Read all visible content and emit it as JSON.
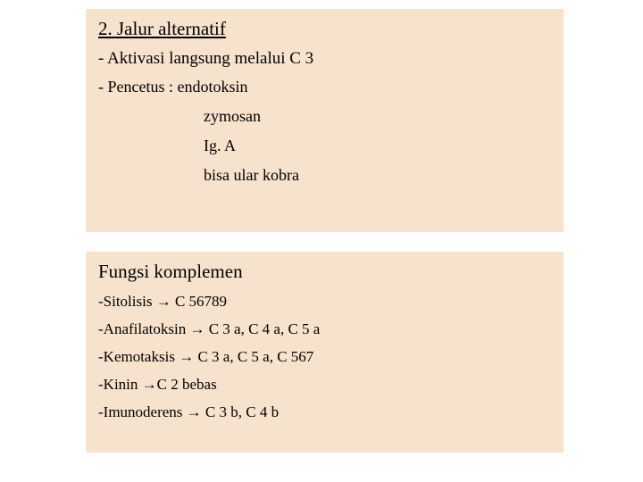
{
  "colors": {
    "block_bg": "#f7e2cd",
    "page_bg": "#ffffff",
    "text": "#000000"
  },
  "typography": {
    "family": "Times New Roman",
    "title_size_pt": 21,
    "body_size_pt": 18,
    "fn_size_pt": 17
  },
  "top": {
    "title": "2. Jalur alternatif",
    "line1_prefix": "- ",
    "line1_text": "Aktivasi langsung melalui C 3",
    "line2": "- Pencetus : endotoksin",
    "sub1": "zymosan",
    "sub2": "Ig. A",
    "sub3": "bisa ular kobra"
  },
  "bottom": {
    "title": "Fungsi komplemen",
    "arrow": "→",
    "items": {
      "i0_pre": "-Sitolisis ",
      "i0_post": " C 56789",
      "i1_pre": "-Anafilatoksin ",
      "i1_post": " C 3 a, C 4 a, C 5 a",
      "i2_pre": "-Kemotaksis ",
      "i2_post": " C 3 a, C 5 a, C 567",
      "i3_pre": "-Kinin ",
      "i3_post": "C 2 bebas",
      "i4_pre": "-Imunoderens ",
      "i4_post": " C 3 b, C 4 b"
    }
  }
}
